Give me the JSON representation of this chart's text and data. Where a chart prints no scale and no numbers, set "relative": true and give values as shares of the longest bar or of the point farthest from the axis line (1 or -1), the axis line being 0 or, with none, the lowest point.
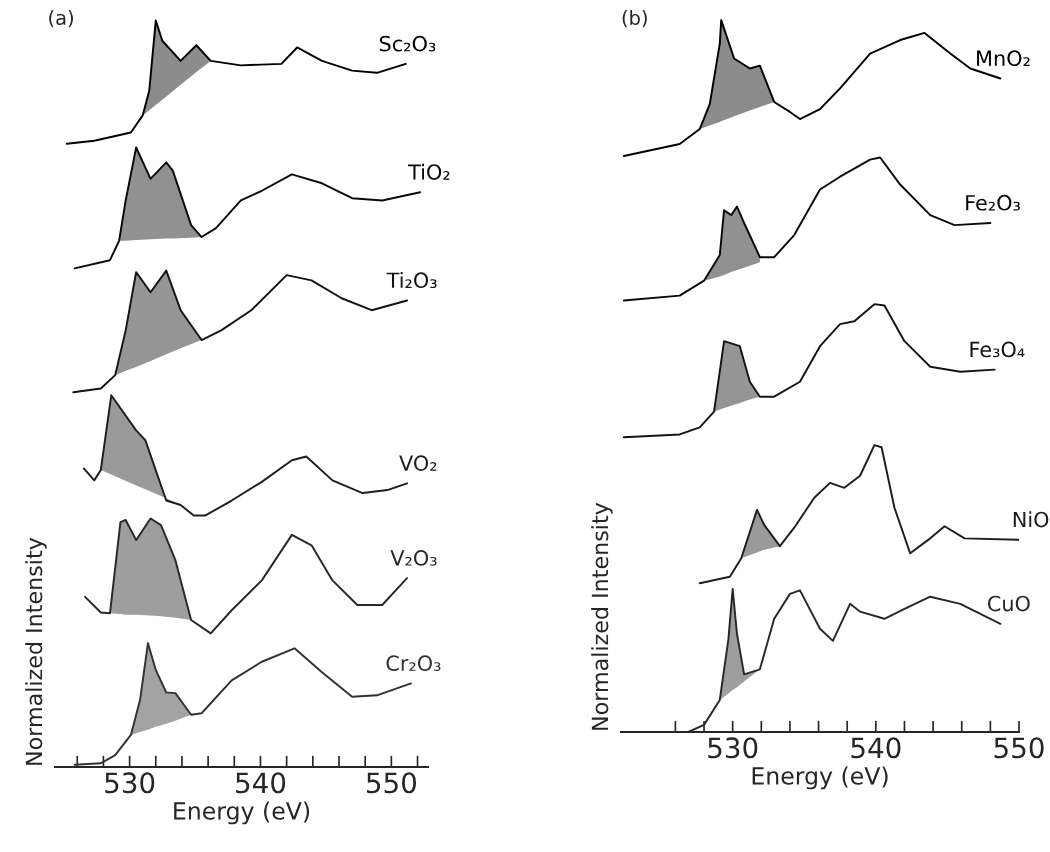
{
  "chart_data": [
    {
      "type": "line",
      "title": "(a)",
      "xlabel": "Energy (eV)",
      "ylabel": "Normalized Intensity",
      "relative": true,
      "tick_labels": "x",
      "xlim": [
        524.3,
        552.8
      ],
      "xticks": [
        {
          "value": 526,
          "label": null
        },
        {
          "value": 528,
          "label": null
        },
        530,
        {
          "value": 532,
          "label": null
        },
        {
          "value": 534,
          "label": null
        },
        {
          "value": 536,
          "label": null
        },
        {
          "value": 538,
          "label": null
        },
        540,
        {
          "value": 542,
          "label": null
        },
        {
          "value": 544,
          "label": null
        },
        {
          "value": 546,
          "label": null
        },
        {
          "value": 548,
          "label": null
        },
        550,
        {
          "value": 552,
          "label": null
        }
      ],
      "series": [
        {
          "name": "Sc₂O₃",
          "color": "#000000",
          "x": [
            525.2,
            527.3,
            530.1,
            531.0,
            531.5,
            532.0,
            532.5,
            533.9,
            535.1,
            536.2,
            538.5,
            541.6,
            542.8,
            544.7,
            547.0,
            548.9,
            551.1
          ],
          "values": [
            0.835,
            0.839,
            0.85,
            0.873,
            0.906,
            1.0,
            0.973,
            0.946,
            0.967,
            0.946,
            0.94,
            0.942,
            0.964,
            0.946,
            0.933,
            0.93,
            0.942
          ],
          "lower": [
            null,
            null,
            null,
            0.873,
            0.88,
            0.887,
            0.894,
            0.914,
            0.931,
            0.946,
            null,
            null,
            null,
            null,
            null,
            null,
            null
          ],
          "upper": [
            null,
            null,
            null,
            0.873,
            0.906,
            1.0,
            0.973,
            0.946,
            0.967,
            0.946,
            null,
            null,
            null,
            null,
            null,
            null,
            null
          ]
        },
        {
          "name": "TiO₂",
          "color": "#0a0a0a",
          "x": [
            525.8,
            528.5,
            529.2,
            529.7,
            530.5,
            531.6,
            532.8,
            533.3,
            534.7,
            535.5,
            536.6,
            538.5,
            540.1,
            542.4,
            544.7,
            547.0,
            549.3,
            552.2
          ],
          "values": [
            0.668,
            0.679,
            0.705,
            0.759,
            0.83,
            0.788,
            0.81,
            0.799,
            0.726,
            0.71,
            0.722,
            0.759,
            0.772,
            0.794,
            0.782,
            0.762,
            0.759,
            0.77
          ],
          "lower": [
            null,
            null,
            0.705,
            0.705,
            0.706,
            0.707,
            0.708,
            0.708,
            0.709,
            0.71,
            null,
            null,
            null,
            null,
            null,
            null,
            null,
            null
          ],
          "upper": [
            null,
            null,
            0.705,
            0.759,
            0.83,
            0.788,
            0.81,
            0.799,
            0.726,
            0.71,
            null,
            null,
            null,
            null,
            null,
            null,
            null,
            null
          ]
        },
        {
          "name": "Ti₂O₃",
          "color": "#141414",
          "x": [
            525.7,
            527.8,
            528.9,
            529.7,
            530.5,
            531.6,
            532.8,
            533.9,
            535.5,
            537.0,
            539.3,
            542.0,
            543.9,
            546.2,
            548.5,
            551.2
          ],
          "values": [
            0.502,
            0.507,
            0.525,
            0.585,
            0.663,
            0.636,
            0.665,
            0.612,
            0.572,
            0.585,
            0.612,
            0.659,
            0.652,
            0.628,
            0.612,
            0.625
          ],
          "lower": [
            null,
            null,
            0.525,
            0.531,
            0.536,
            0.544,
            0.553,
            0.561,
            0.572,
            null,
            null,
            null,
            null,
            null,
            null,
            null
          ],
          "upper": [
            null,
            null,
            0.525,
            0.585,
            0.663,
            0.636,
            0.665,
            0.612,
            0.572,
            null,
            null,
            null,
            null,
            null,
            null,
            null
          ]
        },
        {
          "name": "VO₂",
          "color": "#1e1e1e",
          "x": [
            526.5,
            527.3,
            527.8,
            528.6,
            530.5,
            531.2,
            532.8,
            533.9,
            534.9,
            535.8,
            537.8,
            540.1,
            542.4,
            543.5,
            545.5,
            547.8,
            549.7,
            551.2
          ],
          "values": [
            0.4,
            0.384,
            0.398,
            0.498,
            0.451,
            0.438,
            0.357,
            0.351,
            0.337,
            0.337,
            0.357,
            0.382,
            0.411,
            0.416,
            0.384,
            0.367,
            0.371,
            0.38
          ],
          "lower": [
            null,
            null,
            0.398,
            0.392,
            0.377,
            0.372,
            0.36,
            0.351,
            null,
            null,
            null,
            null,
            null,
            null,
            null,
            null,
            null,
            null
          ],
          "upper": [
            null,
            null,
            0.398,
            0.498,
            0.451,
            0.438,
            0.357,
            0.351,
            null,
            null,
            null,
            null,
            null,
            null,
            null,
            null,
            null,
            null
          ]
        },
        {
          "name": "V₂O₃",
          "color": "#282828",
          "x": [
            526.6,
            527.8,
            528.5,
            529.3,
            529.7,
            530.5,
            531.6,
            532.4,
            533.5,
            534.7,
            536.2,
            537.8,
            540.1,
            542.4,
            543.9,
            545.5,
            547.4,
            549.3,
            551.2
          ],
          "values": [
            0.228,
            0.207,
            0.206,
            0.328,
            0.331,
            0.304,
            0.333,
            0.324,
            0.277,
            0.197,
            0.179,
            0.21,
            0.25,
            0.311,
            0.297,
            0.25,
            0.217,
            0.217,
            0.253
          ],
          "lower": [
            null,
            null,
            0.206,
            0.205,
            0.204,
            0.204,
            0.203,
            0.202,
            0.2,
            0.197,
            null,
            null,
            null,
            null,
            null,
            null,
            null,
            null,
            null
          ],
          "upper": [
            null,
            null,
            0.206,
            0.328,
            0.331,
            0.304,
            0.333,
            0.324,
            0.277,
            0.197,
            null,
            null,
            null,
            null,
            null,
            null,
            null,
            null,
            null
          ]
        },
        {
          "name": "Cr₂O₃",
          "color": "#323232",
          "x": [
            525.8,
            527.8,
            528.9,
            530.1,
            530.8,
            531.4,
            532.0,
            532.8,
            533.5,
            534.7,
            535.5,
            537.8,
            540.1,
            542.6,
            544.7,
            547.0,
            548.9,
            551.5
          ],
          "values": [
            0.003,
            0.005,
            0.016,
            0.043,
            0.09,
            0.166,
            0.13,
            0.1,
            0.099,
            0.07,
            0.072,
            0.116,
            0.141,
            0.159,
            0.127,
            0.094,
            0.096,
            0.112
          ],
          "lower": [
            null,
            null,
            null,
            0.043,
            0.047,
            0.05,
            0.054,
            0.058,
            0.062,
            0.07,
            null,
            null,
            null,
            null,
            null,
            null,
            null,
            null
          ],
          "upper": [
            null,
            null,
            null,
            0.043,
            0.09,
            0.166,
            0.13,
            0.1,
            0.099,
            0.07,
            null,
            null,
            null,
            null,
            null,
            null,
            null,
            null
          ]
        }
      ]
    },
    {
      "type": "line",
      "title": "(b)",
      "xlabel": "Energy (eV)",
      "ylabel": "Normalized Intensity",
      "relative": true,
      "tick_labels": "x",
      "xlim": [
        522.2,
        550
      ],
      "xticks": [
        {
          "value": 526,
          "label": null
        },
        {
          "value": 528,
          "label": null
        },
        530,
        {
          "value": 532,
          "label": null
        },
        {
          "value": 534,
          "label": null
        },
        {
          "value": 536,
          "label": null
        },
        {
          "value": 538,
          "label": null
        },
        540,
        {
          "value": 542,
          "label": null
        },
        {
          "value": 544,
          "label": null
        },
        {
          "value": 546,
          "label": null
        },
        {
          "value": 548,
          "label": null
        },
        550
      ],
      "series": [
        {
          "name": "MnO₂",
          "color": "#000000",
          "x": [
            522.4,
            526.3,
            527.7,
            528.4,
            529.1,
            529.2,
            530.1,
            531.2,
            531.9,
            532.9,
            534.0,
            534.7,
            536.1,
            537.5,
            539.6,
            541.7,
            543.4,
            545.2,
            546.6,
            548.7
          ],
          "values": [
            0.809,
            0.826,
            0.847,
            0.882,
            0.967,
            1.0,
            0.946,
            0.932,
            0.936,
            0.885,
            0.871,
            0.861,
            0.875,
            0.904,
            0.953,
            0.972,
            0.982,
            0.953,
            0.932,
            0.918
          ],
          "lower": [
            null,
            null,
            0.847,
            0.852,
            0.857,
            0.858,
            0.865,
            0.873,
            0.878,
            0.885,
            null,
            null,
            null,
            null,
            null,
            null,
            null,
            null,
            null,
            null
          ],
          "upper": [
            null,
            null,
            0.847,
            0.882,
            0.967,
            1.0,
            0.946,
            0.932,
            0.936,
            0.885,
            null,
            null,
            null,
            null,
            null,
            null,
            null,
            null,
            null,
            null
          ]
        },
        {
          "name": "Fe₂O₃",
          "color": "#0a0a0a",
          "x": [
            522.4,
            526.3,
            528.0,
            529.1,
            529.4,
            529.9,
            530.3,
            530.8,
            531.9,
            532.9,
            534.3,
            536.1,
            537.5,
            539.6,
            540.3,
            541.7,
            543.8,
            545.5,
            548.0
          ],
          "values": [
            0.606,
            0.613,
            0.634,
            0.67,
            0.733,
            0.726,
            0.738,
            0.715,
            0.667,
            0.667,
            0.698,
            0.762,
            0.78,
            0.804,
            0.807,
            0.769,
            0.726,
            0.712,
            0.715
          ],
          "lower": [
            null,
            null,
            0.634,
            0.64,
            0.642,
            0.646,
            0.649,
            0.652,
            0.66,
            null,
            null,
            null,
            null,
            null,
            null,
            null,
            null,
            null,
            null
          ],
          "upper": [
            null,
            null,
            0.634,
            0.67,
            0.733,
            0.726,
            0.738,
            0.715,
            0.667,
            null,
            null,
            null,
            null,
            null,
            null,
            null,
            null,
            null,
            null
          ]
        },
        {
          "name": "Fe₃O₄",
          "color": "#141414",
          "x": [
            522.4,
            526.3,
            527.7,
            528.7,
            529.4,
            530.5,
            531.2,
            531.9,
            532.9,
            534.7,
            536.1,
            537.5,
            538.5,
            539.9,
            540.6,
            542.0,
            543.8,
            545.9,
            548.3
          ],
          "values": [
            0.414,
            0.418,
            0.428,
            0.45,
            0.549,
            0.542,
            0.492,
            0.471,
            0.471,
            0.492,
            0.542,
            0.573,
            0.577,
            0.601,
            0.599,
            0.549,
            0.513,
            0.506,
            0.509
          ],
          "lower": [
            null,
            null,
            null,
            0.45,
            0.455,
            0.462,
            0.467,
            0.471,
            null,
            null,
            null,
            null,
            null,
            null,
            null,
            null,
            null,
            null,
            null
          ],
          "upper": [
            null,
            null,
            null,
            0.45,
            0.549,
            0.542,
            0.492,
            0.471,
            null,
            null,
            null,
            null,
            null,
            null,
            null,
            null,
            null,
            null,
            null
          ]
        },
        {
          "name": "NiO",
          "color": "#1e1e1e",
          "x": [
            527.7,
            529.8,
            530.6,
            531.7,
            532.2,
            533.3,
            534.3,
            535.7,
            536.8,
            537.8,
            538.9,
            539.9,
            540.4,
            541.3,
            542.4,
            543.8,
            544.8,
            546.2,
            550.0
          ],
          "values": [
            0.209,
            0.218,
            0.244,
            0.312,
            0.291,
            0.261,
            0.287,
            0.329,
            0.35,
            0.343,
            0.36,
            0.403,
            0.4,
            0.315,
            0.251,
            0.272,
            0.289,
            0.272,
            0.27
          ],
          "lower": [
            null,
            null,
            0.244,
            0.252,
            0.256,
            0.261,
            null,
            null,
            null,
            null,
            null,
            null,
            null,
            null,
            null,
            null,
            null,
            null,
            null
          ],
          "upper": [
            null,
            null,
            0.244,
            0.312,
            0.291,
            0.261,
            null,
            null,
            null,
            null,
            null,
            null,
            null,
            null,
            null,
            null,
            null,
            null,
            null
          ]
        },
        {
          "name": "CuO",
          "color": "#282828",
          "x": [
            526.9,
            528.0,
            529.1,
            529.7,
            530.0,
            530.3,
            530.8,
            531.9,
            532.9,
            534.0,
            534.7,
            536.1,
            537.0,
            538.2,
            538.9,
            540.6,
            542.0,
            543.8,
            545.9,
            548.7
          ],
          "values": [
            0.0,
            0.01,
            0.045,
            0.13,
            0.201,
            0.138,
            0.081,
            0.088,
            0.159,
            0.194,
            0.199,
            0.145,
            0.128,
            0.18,
            0.169,
            0.159,
            0.173,
            0.19,
            0.18,
            0.152
          ],
          "lower": [
            null,
            null,
            0.045,
            0.054,
            0.059,
            0.063,
            0.071,
            0.088,
            null,
            null,
            null,
            null,
            null,
            null,
            null,
            null,
            null,
            null,
            null,
            null
          ],
          "upper": [
            null,
            null,
            0.045,
            0.13,
            0.201,
            0.138,
            0.081,
            0.088,
            null,
            null,
            null,
            null,
            null,
            null,
            null,
            null,
            null,
            null,
            null,
            null
          ]
        }
      ]
    }
  ]
}
